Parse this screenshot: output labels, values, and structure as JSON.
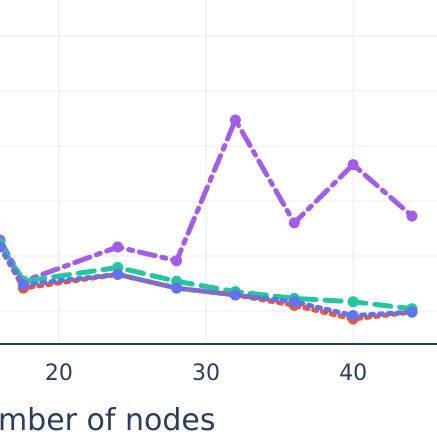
{
  "chart_data": {
    "type": "line",
    "title": "",
    "xlabel": "Number of nodes",
    "ylabel": "",
    "xlim": [
      16.0,
      45.7
    ],
    "ylim": [
      0.0,
      10.0
    ],
    "x_ticks": [
      "20",
      "30",
      "40"
    ],
    "grid": true,
    "colors": {
      "background": "#ffffff",
      "grid": "#e6ebf3",
      "axis": "#2a3f5f"
    },
    "series": [
      {
        "color": "#a35ce8",
        "dash": "dashdot",
        "x": [
          16,
          17.6,
          24,
          28,
          32,
          36,
          40,
          44
        ],
        "y": [
          3.0,
          1.8,
          2.8,
          2.4,
          6.5,
          3.5,
          5.2,
          3.7
        ]
      },
      {
        "color": "#22c7a0",
        "dash": "dash",
        "x": [
          16,
          17.6,
          24,
          28,
          32,
          36,
          40,
          44
        ],
        "y": [
          2.9,
          1.8,
          2.2,
          1.8,
          1.5,
          1.3,
          1.2,
          1.0
        ]
      },
      {
        "color": "#ee5538",
        "dash": "dot",
        "x": [
          16,
          17.6,
          24,
          28,
          32,
          36,
          40,
          44
        ],
        "y": [
          2.8,
          1.6,
          2.0,
          1.6,
          1.4,
          1.1,
          0.7,
          0.9
        ]
      },
      {
        "color": "#6273ee",
        "dash": "dot",
        "x": [
          16,
          17.6,
          24,
          28,
          32,
          36,
          40,
          44
        ],
        "y": [
          2.8,
          1.7,
          2.0,
          1.6,
          1.4,
          1.2,
          0.8,
          0.9
        ]
      }
    ]
  }
}
